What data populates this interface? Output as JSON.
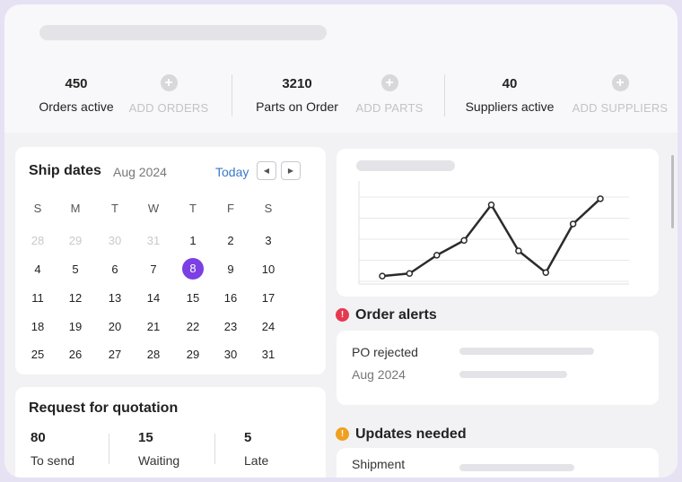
{
  "stats": [
    {
      "value": "450",
      "label": "Orders active",
      "add_label": "ADD ORDERS"
    },
    {
      "value": "3210",
      "label": "Parts on Order",
      "add_label": "ADD PARTS"
    },
    {
      "value": "40",
      "label": "Suppliers active",
      "add_label": "ADD SUPPLIERS"
    }
  ],
  "calendar": {
    "title": "Ship dates",
    "month": "Aug 2024",
    "today_label": "Today",
    "prev_icon": "◀",
    "next_icon": "▶",
    "weekdays": [
      "S",
      "M",
      "T",
      "W",
      "T",
      "F",
      "S"
    ],
    "weeks": [
      [
        {
          "d": "28",
          "m": true
        },
        {
          "d": "29",
          "m": true
        },
        {
          "d": "30",
          "m": true
        },
        {
          "d": "31",
          "m": true
        },
        {
          "d": "1"
        },
        {
          "d": "2"
        },
        {
          "d": "3"
        }
      ],
      [
        {
          "d": "4"
        },
        {
          "d": "5"
        },
        {
          "d": "6"
        },
        {
          "d": "7"
        },
        {
          "d": "8",
          "s": true
        },
        {
          "d": "9"
        },
        {
          "d": "10"
        }
      ],
      [
        {
          "d": "11"
        },
        {
          "d": "12"
        },
        {
          "d": "13"
        },
        {
          "d": "14"
        },
        {
          "d": "15"
        },
        {
          "d": "16"
        },
        {
          "d": "17"
        }
      ],
      [
        {
          "d": "18"
        },
        {
          "d": "19"
        },
        {
          "d": "20"
        },
        {
          "d": "21"
        },
        {
          "d": "22"
        },
        {
          "d": "23"
        },
        {
          "d": "24"
        }
      ],
      [
        {
          "d": "25"
        },
        {
          "d": "26"
        },
        {
          "d": "27"
        },
        {
          "d": "28"
        },
        {
          "d": "29"
        },
        {
          "d": "30"
        },
        {
          "d": "31"
        }
      ]
    ],
    "selected_color": "#7b3fe4"
  },
  "rfq": {
    "title": "Request for quotation",
    "stats": [
      {
        "value": "80",
        "label": "To send"
      },
      {
        "value": "15",
        "label": "Waiting"
      },
      {
        "value": "5",
        "label": "Late"
      }
    ]
  },
  "chart_data": {
    "type": "line",
    "x": [
      1,
      2,
      3,
      4,
      5,
      6,
      7,
      8,
      9
    ],
    "series": [
      {
        "values": [
          0.5,
          0.8,
          2.9,
          4.6,
          8.7,
          3.4,
          0.9,
          6.5,
          9.4
        ]
      }
    ],
    "ylim": [
      0,
      10
    ],
    "grid": true,
    "line_color": "#2b2b2b"
  },
  "order_alerts": {
    "title": "Order alerts",
    "icon": "!",
    "icon_color": "#e5394f",
    "item_label": "PO rejected",
    "item_sub": "Aug 2024"
  },
  "updates": {
    "title": "Updates needed",
    "icon": "!",
    "icon_color": "#f0a020",
    "item_label": "Shipment"
  }
}
